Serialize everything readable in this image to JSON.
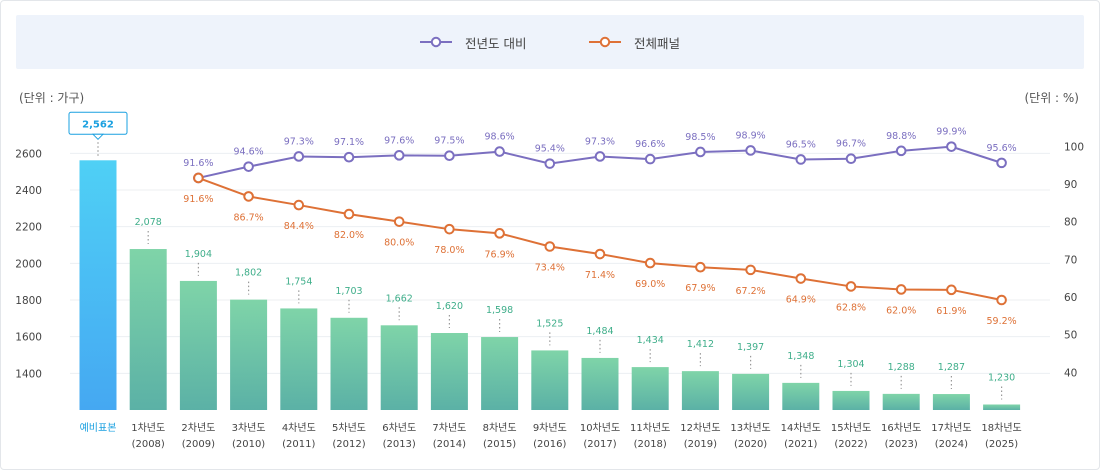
{
  "legend": {
    "items": [
      {
        "label": "전년도 대비",
        "color": "#7b6fc0"
      },
      {
        "label": "전체패널",
        "color": "#de7136"
      }
    ]
  },
  "units": {
    "left": "(단위 : 가구)",
    "right": "(단위 : %)"
  },
  "chart_data": {
    "type": "bar",
    "title": "",
    "left_axis": {
      "ticks": [
        1400,
        1600,
        1800,
        2000,
        2200,
        2400,
        2600
      ],
      "range": [
        1200,
        2700
      ]
    },
    "right_axis": {
      "ticks": [
        40,
        50,
        60,
        70,
        80,
        90,
        100
      ],
      "range": [
        30,
        103
      ]
    },
    "categories": [
      {
        "line1": "예비표본",
        "line2": ""
      },
      {
        "line1": "1차년도",
        "line2": "(2008)"
      },
      {
        "line1": "2차년도",
        "line2": "(2009)"
      },
      {
        "line1": "3차년도",
        "line2": "(2010)"
      },
      {
        "line1": "4차년도",
        "line2": "(2011)"
      },
      {
        "line1": "5차년도",
        "line2": "(2012)"
      },
      {
        "line1": "6차년도",
        "line2": "(2013)"
      },
      {
        "line1": "7차년도",
        "line2": "(2014)"
      },
      {
        "line1": "8차년도",
        "line2": "(2015)"
      },
      {
        "line1": "9차년도",
        "line2": "(2016)"
      },
      {
        "line1": "10차년도",
        "line2": "(2017)"
      },
      {
        "line1": "11차년도",
        "line2": "(2018)"
      },
      {
        "line1": "12차년도",
        "line2": "(2019)"
      },
      {
        "line1": "13차년도",
        "line2": "(2020)"
      },
      {
        "line1": "14차년도",
        "line2": "(2021)"
      },
      {
        "line1": "15차년도",
        "line2": "(2022)"
      },
      {
        "line1": "16차년도",
        "line2": "(2023)"
      },
      {
        "line1": "17차년도",
        "line2": "(2024)"
      },
      {
        "line1": "18차년도",
        "line2": "(2025)"
      }
    ],
    "bars": {
      "name": "가구",
      "values": [
        2562,
        2078,
        1904,
        1802,
        1754,
        1703,
        1662,
        1620,
        1598,
        1525,
        1484,
        1434,
        1412,
        1397,
        1348,
        1304,
        1288,
        1287,
        1230
      ],
      "labels": [
        "2,562",
        "2,078",
        "1,904",
        "1,802",
        "1,754",
        "1,703",
        "1,662",
        "1,620",
        "1,598",
        "1,525",
        "1,484",
        "1,434",
        "1,412",
        "1,397",
        "1,348",
        "1,304",
        "1,288",
        "1,287",
        "1,230"
      ],
      "colors": {
        "first_top": "#4fd0f5",
        "first_bottom": "#45a8f2",
        "top": "#7fd4a8",
        "bottom": "#5bb1a6",
        "first_label": "#1aa0e0",
        "label": "#3fae8a"
      }
    },
    "lines": [
      {
        "name": "전년도 대비",
        "color": "#7b6fc0",
        "values": [
          null,
          null,
          91.6,
          94.6,
          97.3,
          97.1,
          97.6,
          97.5,
          98.6,
          95.4,
          97.3,
          96.6,
          98.5,
          98.9,
          96.5,
          96.7,
          98.8,
          99.9,
          95.6
        ],
        "labels": [
          null,
          null,
          "91.6%",
          "94.6%",
          "97.3%",
          "97.1%",
          "97.6%",
          "97.5%",
          "98.6%",
          "95.4%",
          "97.3%",
          "96.6%",
          "98.5%",
          "98.9%",
          "96.5%",
          "96.7%",
          "98.8%",
          "99.9%",
          "95.6%"
        ],
        "label_pos": "above"
      },
      {
        "name": "전체패널",
        "color": "#de7136",
        "values": [
          null,
          null,
          91.6,
          86.7,
          84.4,
          82.0,
          80.0,
          78.0,
          76.9,
          73.4,
          71.4,
          69.0,
          67.9,
          67.2,
          64.9,
          62.8,
          62.0,
          61.9,
          59.2
        ],
        "labels": [
          null,
          null,
          "91.6%",
          "86.7%",
          "84.4%",
          "82.0%",
          "80.0%",
          "78.0%",
          "76.9%",
          "73.4%",
          "71.4%",
          "69.0%",
          "67.9%",
          "67.2%",
          "64.9%",
          "62.8%",
          "62.0%",
          "61.9%",
          "59.2%"
        ],
        "label_pos": "below"
      }
    ],
    "grid": true
  }
}
